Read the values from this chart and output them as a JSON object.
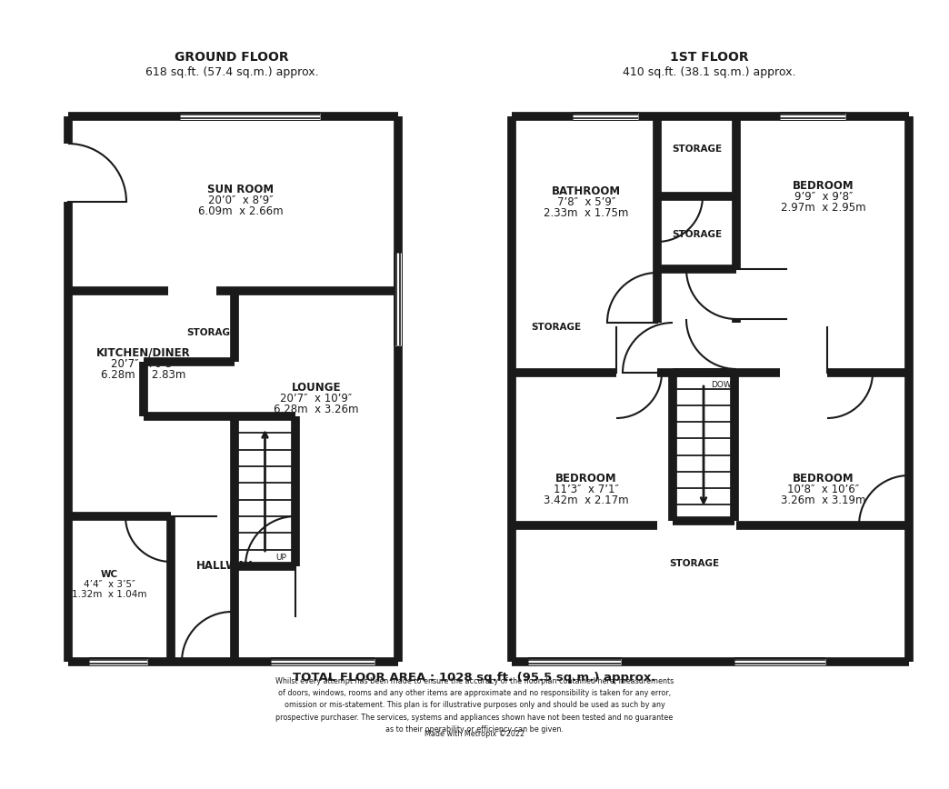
{
  "bg_color": "#ffffff",
  "wall_color": "#1a1a1a",
  "wall_lw": 7,
  "thin_lw": 1.5,
  "window_color": "#aaaaaa",
  "ground_floor_title": "GROUND FLOOR",
  "ground_floor_subtitle": "618 sq.ft. (57.4 sq.m.) approx.",
  "first_floor_title": "1ST FLOOR",
  "first_floor_subtitle": "410 sq.ft. (38.1 sq.m.) approx.",
  "total_area": "TOTAL FLOOR AREA : 1028 sq.ft. (95.5 sq.m.) approx.",
  "disclaimer_line1": "Whilst every attempt has been made to ensure the accuracy of the floorplan contained here, measurements",
  "disclaimer_line2": "of doors, windows, rooms and any other items are approximate and no responsibility is taken for any error,",
  "disclaimer_line3": "omission or mis-statement. This plan is for illustrative purposes only and should be used as such by any",
  "disclaimer_line4": "prospective purchaser. The services, systems and appliances shown have not been tested and no guarantee",
  "disclaimer_line5": "as to their operability or efficiency can be given.",
  "made_with": "Made with Metropix ©2022",
  "sun_room_label": [
    "SUN ROOM",
    "20’0″  x 8’9″",
    "6.09m  x 2.66m"
  ],
  "kitchen_label": [
    "KITCHEN/DINER",
    "20’7″  x 9’3″",
    "6.28m  x 2.83m"
  ],
  "lounge_label": [
    "LOUNGE",
    "20’7″  x 10’9″",
    "6.28m  x 3.26m"
  ],
  "hallway_label": "HALLWAY",
  "wc_label": [
    "WC",
    "4’4″  x 3’5″",
    "1.32m  x 1.04m"
  ],
  "storage_label": "STORAGE",
  "up_label": "UP",
  "down_label": "DOWN",
  "bathroom_label": [
    "BATHROOM",
    "7’8″  x 5’9″",
    "2.33m  x 1.75m"
  ],
  "bed1_label": [
    "BEDROOM",
    "9’9″  x 9’8″",
    "2.97m  x 2.95m"
  ],
  "bed2_label": [
    "BEDROOM",
    "11’3″  x 7’1″",
    "3.42m  x 2.17m"
  ],
  "bed3_label": [
    "BEDROOM",
    "10’8″  x 10’6″",
    "3.26m  x 3.19m"
  ]
}
